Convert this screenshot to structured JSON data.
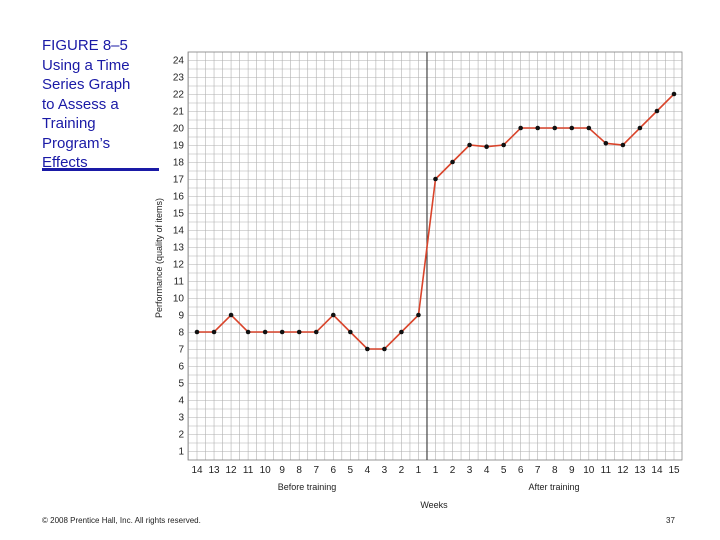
{
  "figure": {
    "title_lines": [
      "FIGURE 8–5",
      "Using a Time",
      "Series Graph",
      "to Assess a",
      "Training",
      "Program’s",
      "Effects"
    ]
  },
  "colors": {
    "title": "#1a1aa6",
    "line": "#d9442b",
    "marker": "#111111",
    "grid": "#b0b0b0",
    "axis_text": "#222222"
  },
  "chart_data": {
    "type": "line",
    "title": "",
    "ylabel": "Performance (quality of items)",
    "xlabel": "Weeks",
    "group_labels": [
      "Before training",
      "After training"
    ],
    "ylim": [
      0,
      24
    ],
    "yticks": [
      1,
      2,
      3,
      4,
      5,
      6,
      7,
      8,
      9,
      10,
      11,
      12,
      13,
      14,
      15,
      16,
      17,
      18,
      19,
      20,
      21,
      22,
      23,
      24
    ],
    "grid": true,
    "divider_after_category": 13,
    "categories": [
      "14",
      "13",
      "12",
      "11",
      "10",
      "9",
      "8",
      "7",
      "6",
      "5",
      "4",
      "3",
      "2",
      "1",
      "1",
      "2",
      "3",
      "4",
      "5",
      "6",
      "7",
      "8",
      "9",
      "10",
      "11",
      "12",
      "13",
      "14",
      "15"
    ],
    "series": [
      {
        "values": [
          8,
          8,
          9,
          8,
          8,
          8,
          8,
          8,
          9,
          8,
          7,
          7,
          8,
          9,
          17,
          18,
          19,
          18.9,
          19,
          20,
          20,
          20,
          20,
          20,
          19.1,
          19,
          20,
          21,
          22
        ]
      }
    ]
  },
  "footer": {
    "copyright": "© 2008 Prentice Hall, Inc. All rights reserved.",
    "page_number": "37"
  }
}
